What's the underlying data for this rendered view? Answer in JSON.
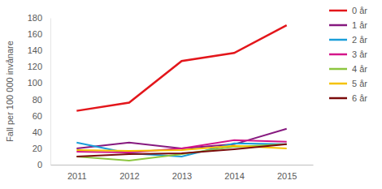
{
  "chart_data": {
    "type": "line",
    "y_label": "Fall per 100 000 invånare",
    "categories": [
      "2011",
      "2012",
      "2013",
      "2014",
      "2015"
    ],
    "series": [
      {
        "name": "0 år",
        "color": "#e3161b",
        "values": [
          66,
          76,
          127,
          137,
          171
        ]
      },
      {
        "name": "1 år",
        "color": "#86197f",
        "values": [
          20,
          27,
          20,
          25,
          44
        ]
      },
      {
        "name": "2 år",
        "color": "#1a9ed9",
        "values": [
          27,
          14,
          10,
          26,
          25
        ]
      },
      {
        "name": "3 år",
        "color": "#d4168a",
        "values": [
          16,
          15,
          20,
          30,
          28
        ]
      },
      {
        "name": "4 år",
        "color": "#8cc63f",
        "values": [
          10,
          5,
          13,
          22,
          25
        ]
      },
      {
        "name": "5 år",
        "color": "#f5c200",
        "values": [
          18,
          17,
          18,
          23,
          20
        ]
      },
      {
        "name": "6 år",
        "color": "#7a0b0b",
        "values": [
          10,
          13,
          14,
          19,
          25
        ]
      }
    ],
    "ylim": [
      0,
      180
    ],
    "yticks": [
      0,
      20,
      40,
      60,
      80,
      100,
      120,
      140,
      160,
      180
    ],
    "grid": false,
    "legend": "right"
  }
}
